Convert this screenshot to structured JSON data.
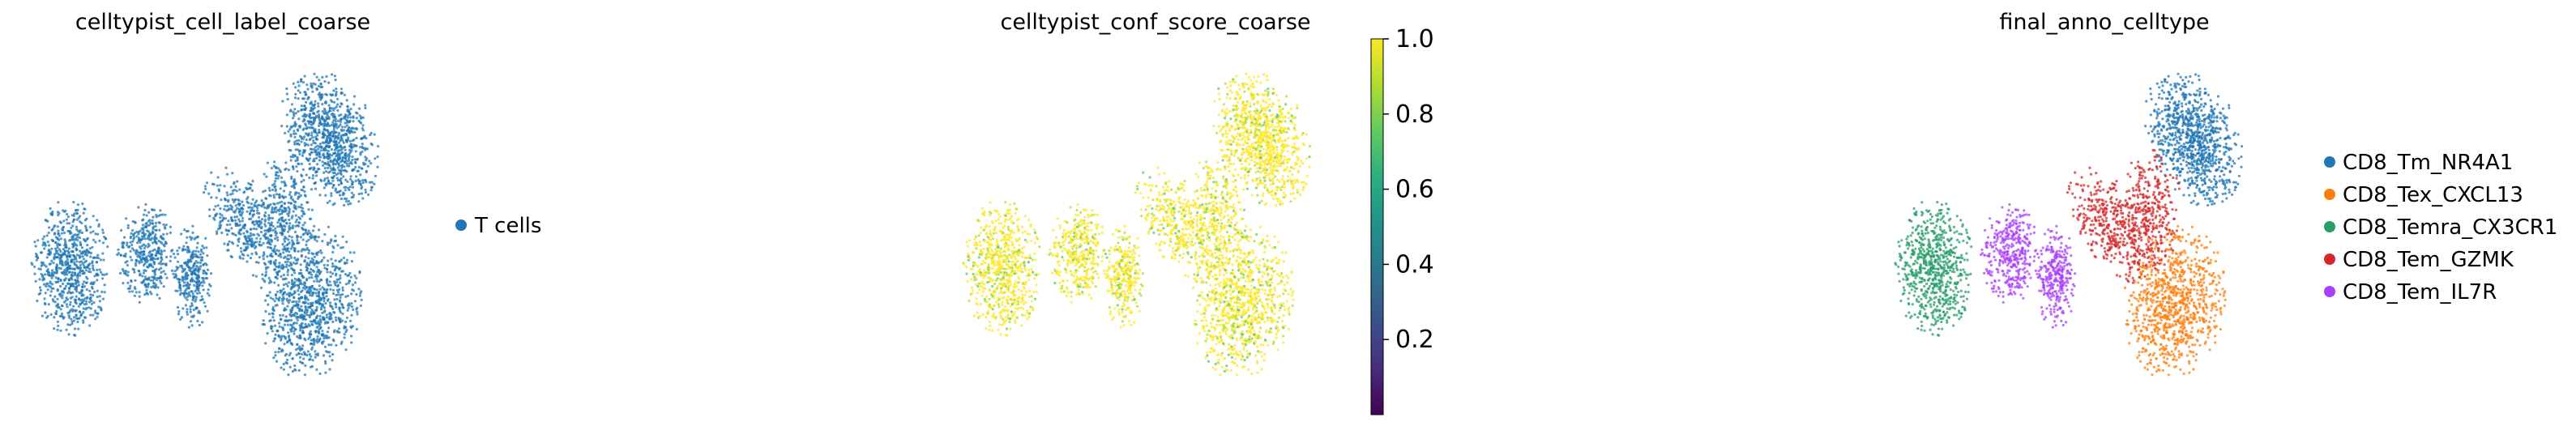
{
  "chart_data": [
    {
      "type": "scatter",
      "title": "celltypist_cell_label_coarse",
      "xlabel": "",
      "ylabel": "",
      "axes_visible": false,
      "legend": {
        "placement": "right",
        "entries": [
          {
            "label": "T cells",
            "color": "#1f77b4"
          }
        ]
      }
    },
    {
      "type": "scatter",
      "title": "celltypist_conf_score_coarse",
      "xlabel": "",
      "ylabel": "",
      "axes_visible": false,
      "colorbar": {
        "colormap": "viridis",
        "range": [
          0.0,
          1.0
        ],
        "ticks": [
          "0.2",
          "0.4",
          "0.6",
          "0.8",
          "1.0"
        ],
        "tick_values": [
          0.2,
          0.4,
          0.6,
          0.8,
          1.0
        ]
      }
    },
    {
      "type": "scatter",
      "title": "final_anno_celltype",
      "xlabel": "",
      "ylabel": "",
      "axes_visible": false,
      "legend": {
        "placement": "right",
        "entries": [
          {
            "label": "CD8_Tm_NR4A1",
            "color": "#1f77b4"
          },
          {
            "label": "CD8_Tex_CXCL13",
            "color": "#ff7f0e"
          },
          {
            "label": "CD8_Temra_CX3CR1",
            "color": "#279e68"
          },
          {
            "label": "CD8_Tem_GZMK",
            "color": "#d62728"
          },
          {
            "label": "CD8_Tem_IL7R",
            "color": "#aa40fc"
          }
        ]
      }
    }
  ]
}
